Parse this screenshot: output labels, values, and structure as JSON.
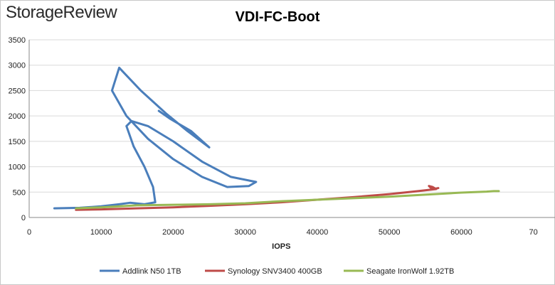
{
  "logo": {
    "text": "StorageReview"
  },
  "chart_data": {
    "type": "line",
    "title": "VDI-FC-Boot",
    "xlabel": "IOPS",
    "ylabel": "",
    "xlim": [
      0,
      70000
    ],
    "ylim": [
      0,
      3500
    ],
    "x_ticks": [
      "0",
      "10000",
      "20000",
      "30000",
      "40000",
      "50000",
      "60000",
      "70"
    ],
    "y_ticks": [
      "0",
      "500",
      "1000",
      "1500",
      "2000",
      "2500",
      "3000",
      "3500"
    ],
    "grid": "horizontal",
    "legend": "bottom",
    "series": [
      {
        "name": "Addlink N50 1TB",
        "color": "#4a7ebb",
        "x": [
          3500,
          7000,
          10000,
          12500,
          14000,
          16000,
          17500,
          17200,
          16000,
          14500,
          13500,
          14200,
          16500,
          20000,
          24000,
          28000,
          31500,
          30500,
          27500,
          24000,
          20000,
          16500,
          13500,
          11500,
          12500,
          15500,
          19000,
          22000,
          25000,
          22500,
          19500,
          18000
        ],
        "y": [
          180,
          190,
          220,
          260,
          290,
          260,
          300,
          600,
          1000,
          1400,
          1800,
          1900,
          1800,
          1500,
          1100,
          800,
          700,
          620,
          600,
          800,
          1150,
          1550,
          2000,
          2500,
          2950,
          2500,
          2050,
          1700,
          1380,
          1700,
          1950,
          2100
        ]
      },
      {
        "name": "Synology SNV3400 400GB",
        "color": "#be4b48",
        "x": [
          6500,
          10000,
          15000,
          20000,
          25000,
          30000,
          35000,
          40000,
          45000,
          50000,
          54000,
          56500,
          56000,
          55500,
          55800,
          56200,
          56800
        ],
        "y": [
          150,
          160,
          180,
          200,
          230,
          260,
          300,
          350,
          400,
          460,
          520,
          560,
          600,
          620,
          580,
          560,
          580
        ]
      },
      {
        "name": "Seagate IronWolf 1.92TB",
        "color": "#98b954",
        "x": [
          6500,
          10000,
          15000,
          20000,
          25000,
          30000,
          35000,
          40000,
          45000,
          50000,
          55000,
          60000,
          63500,
          64500,
          65200
        ],
        "y": [
          180,
          200,
          240,
          250,
          260,
          280,
          320,
          350,
          380,
          410,
          450,
          490,
          510,
          520,
          520
        ]
      }
    ]
  }
}
